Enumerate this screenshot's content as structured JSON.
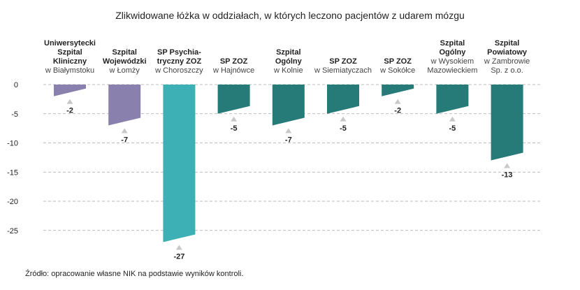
{
  "chart_data": {
    "type": "bar",
    "title": "Zlikwidowane łóżka w oddziałach, w których leczono pacjentów z udarem mózgu",
    "categories": [
      {
        "bold": [
          "Uniwersytecki",
          "Szpital",
          "Kliniczny"
        ],
        "light": [
          "w Białymstoku"
        ]
      },
      {
        "bold": [
          "Szpital",
          "Wojewódzki"
        ],
        "light": [
          "w Łomży"
        ]
      },
      {
        "bold": [
          "SP Psychia-",
          "tryczny ZOZ"
        ],
        "light": [
          "w Choroszczy"
        ]
      },
      {
        "bold": [
          "SP ZOZ"
        ],
        "light": [
          "w Hajnówce"
        ]
      },
      {
        "bold": [
          "Szpital",
          "Ogólny"
        ],
        "light": [
          "w Kolnie"
        ]
      },
      {
        "bold": [
          "SP ZOZ"
        ],
        "light": [
          "w Siemiatyczach"
        ]
      },
      {
        "bold": [
          "SP ZOZ"
        ],
        "light": [
          "w Sokółce"
        ]
      },
      {
        "bold": [
          "Szpital",
          "Ogólny"
        ],
        "light": [
          "w Wysokiem",
          "Mazowieckiem"
        ]
      },
      {
        "bold": [
          "Szpital",
          "Powiatowy"
        ],
        "light": [
          "w Zambrowie",
          "Sp. z o.o."
        ]
      }
    ],
    "values": [
      -2,
      -7,
      -27,
      -5,
      -7,
      -5,
      -2,
      -5,
      -13
    ],
    "value_labels": [
      "-2",
      "-7",
      "-27",
      "-5",
      "-7",
      "-5",
      "-2",
      "-5",
      "-13"
    ],
    "colors": [
      "#8a80ad",
      "#8a80ad",
      "#3db0b6",
      "#267a78",
      "#267a78",
      "#267a78",
      "#267a78",
      "#267a78",
      "#267a78"
    ],
    "yticks": [
      "0",
      "-5",
      "-10",
      "-15",
      "-20",
      "-25"
    ],
    "ylim": [
      -27,
      0
    ],
    "grid": true
  },
  "footer": {
    "source": "Źródło: opracowanie własne NIK na podstawie wyników kontroli."
  }
}
